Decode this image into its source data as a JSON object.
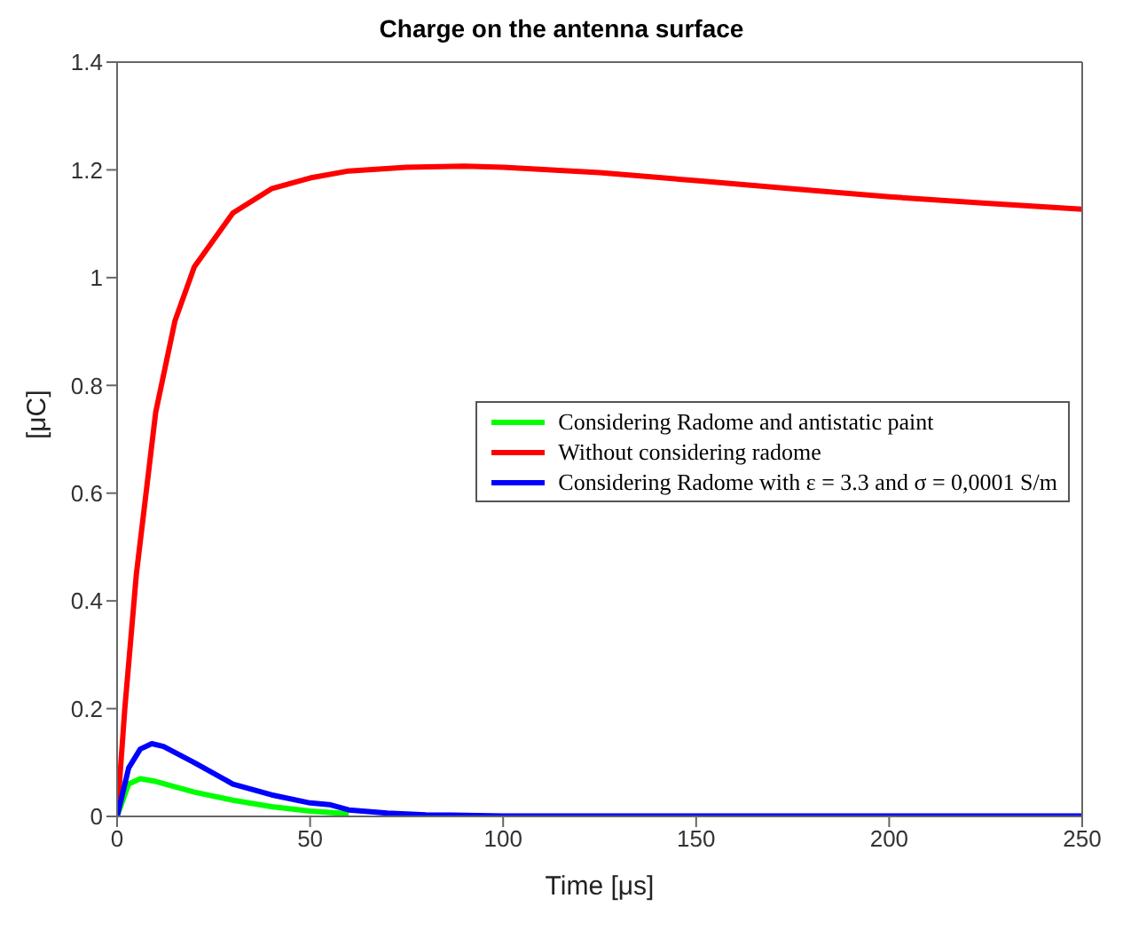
{
  "chart_data": {
    "type": "line",
    "title": "Charge on the antenna surface",
    "xlabel": "Time [μs]",
    "ylabel": "[μC]",
    "xlim": [
      0,
      250
    ],
    "xticks": [
      0,
      50,
      100,
      150,
      200,
      250
    ],
    "ylim": [
      0,
      1.4
    ],
    "yticks": [
      0,
      0.2,
      0.4,
      0.6,
      0.8,
      1,
      1.2,
      1.4
    ],
    "grid": false,
    "legend": "right",
    "line_style": "solid",
    "marker": "none",
    "series": [
      {
        "name": "Considering Radome and antistatic paint",
        "color": "#00ff00",
        "x": [
          0,
          3,
          6,
          10,
          20,
          30,
          40,
          50,
          60
        ],
        "values": [
          0,
          0.06,
          0.07,
          0.065,
          0.045,
          0.03,
          0.018,
          0.01,
          0.005
        ]
      },
      {
        "name": "Without considering radome",
        "color": "#ff0000",
        "x": [
          0,
          2,
          5,
          10,
          15,
          20,
          30,
          40,
          50,
          60,
          75,
          90,
          100,
          125,
          150,
          175,
          200,
          225,
          250
        ],
        "values": [
          0,
          0.2,
          0.45,
          0.75,
          0.92,
          1.02,
          1.12,
          1.165,
          1.185,
          1.198,
          1.205,
          1.207,
          1.205,
          1.195,
          1.18,
          1.165,
          1.15,
          1.138,
          1.127
        ]
      },
      {
        "name": "Considering Radome with ε = 3.3 and σ = 0,0001 S/m",
        "color": "#0000ff",
        "x": [
          0,
          3,
          6,
          9,
          12,
          20,
          30,
          40,
          50,
          55,
          60,
          70,
          80,
          100,
          250
        ],
        "values": [
          0,
          0.09,
          0.125,
          0.135,
          0.13,
          0.1,
          0.06,
          0.04,
          0.025,
          0.022,
          0.012,
          0.006,
          0.003,
          0.001,
          0.001
        ]
      }
    ]
  }
}
